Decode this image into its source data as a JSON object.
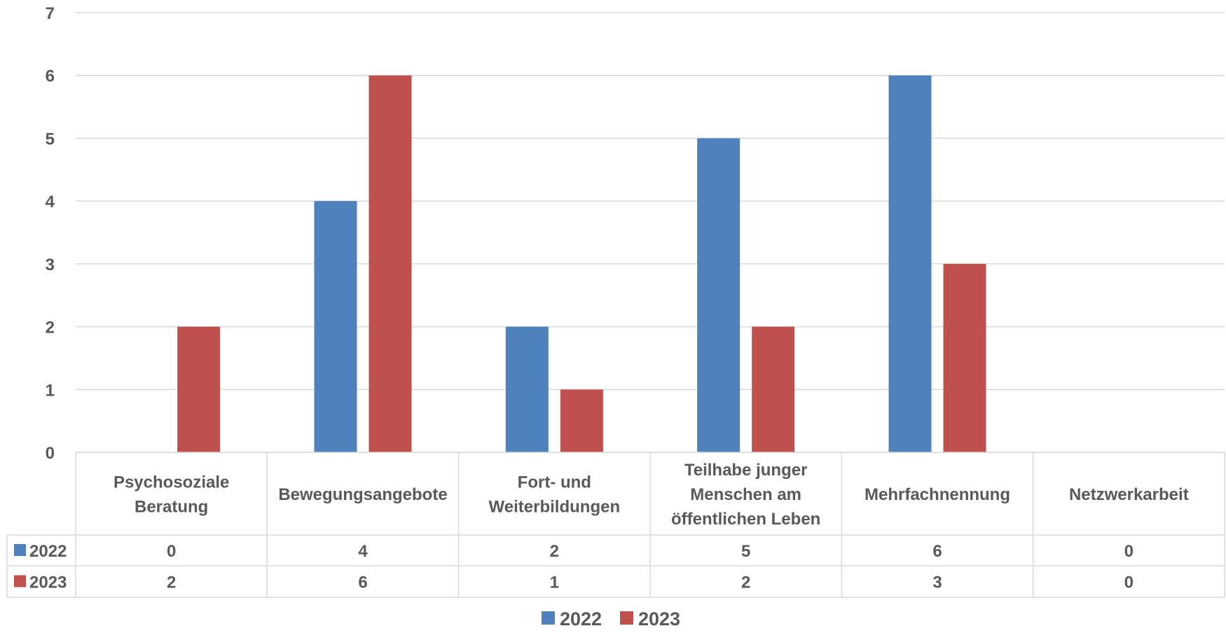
{
  "chart_data": {
    "type": "bar",
    "categories": [
      [
        "Psychosoziale",
        "Beratung"
      ],
      [
        "Bewegungsangebote"
      ],
      [
        "Fort- und",
        "Weiterbildungen"
      ],
      [
        "Teilhabe junger",
        "Menschen am",
        "öffentlichen Leben"
      ],
      [
        "Mehrfachnennung"
      ],
      [
        "Netzwerkarbeit"
      ]
    ],
    "series": [
      {
        "name": "2022",
        "color": "#4F81BD",
        "values": [
          0,
          4,
          2,
          5,
          6,
          0
        ]
      },
      {
        "name": "2023",
        "color": "#C0504D",
        "values": [
          2,
          6,
          1,
          2,
          3,
          0
        ]
      }
    ],
    "ylim": [
      0,
      7
    ],
    "yticks": [
      "0",
      "1",
      "2",
      "3",
      "4",
      "5",
      "6",
      "7"
    ],
    "grid": true,
    "data_table": true,
    "legend": "bottom"
  }
}
